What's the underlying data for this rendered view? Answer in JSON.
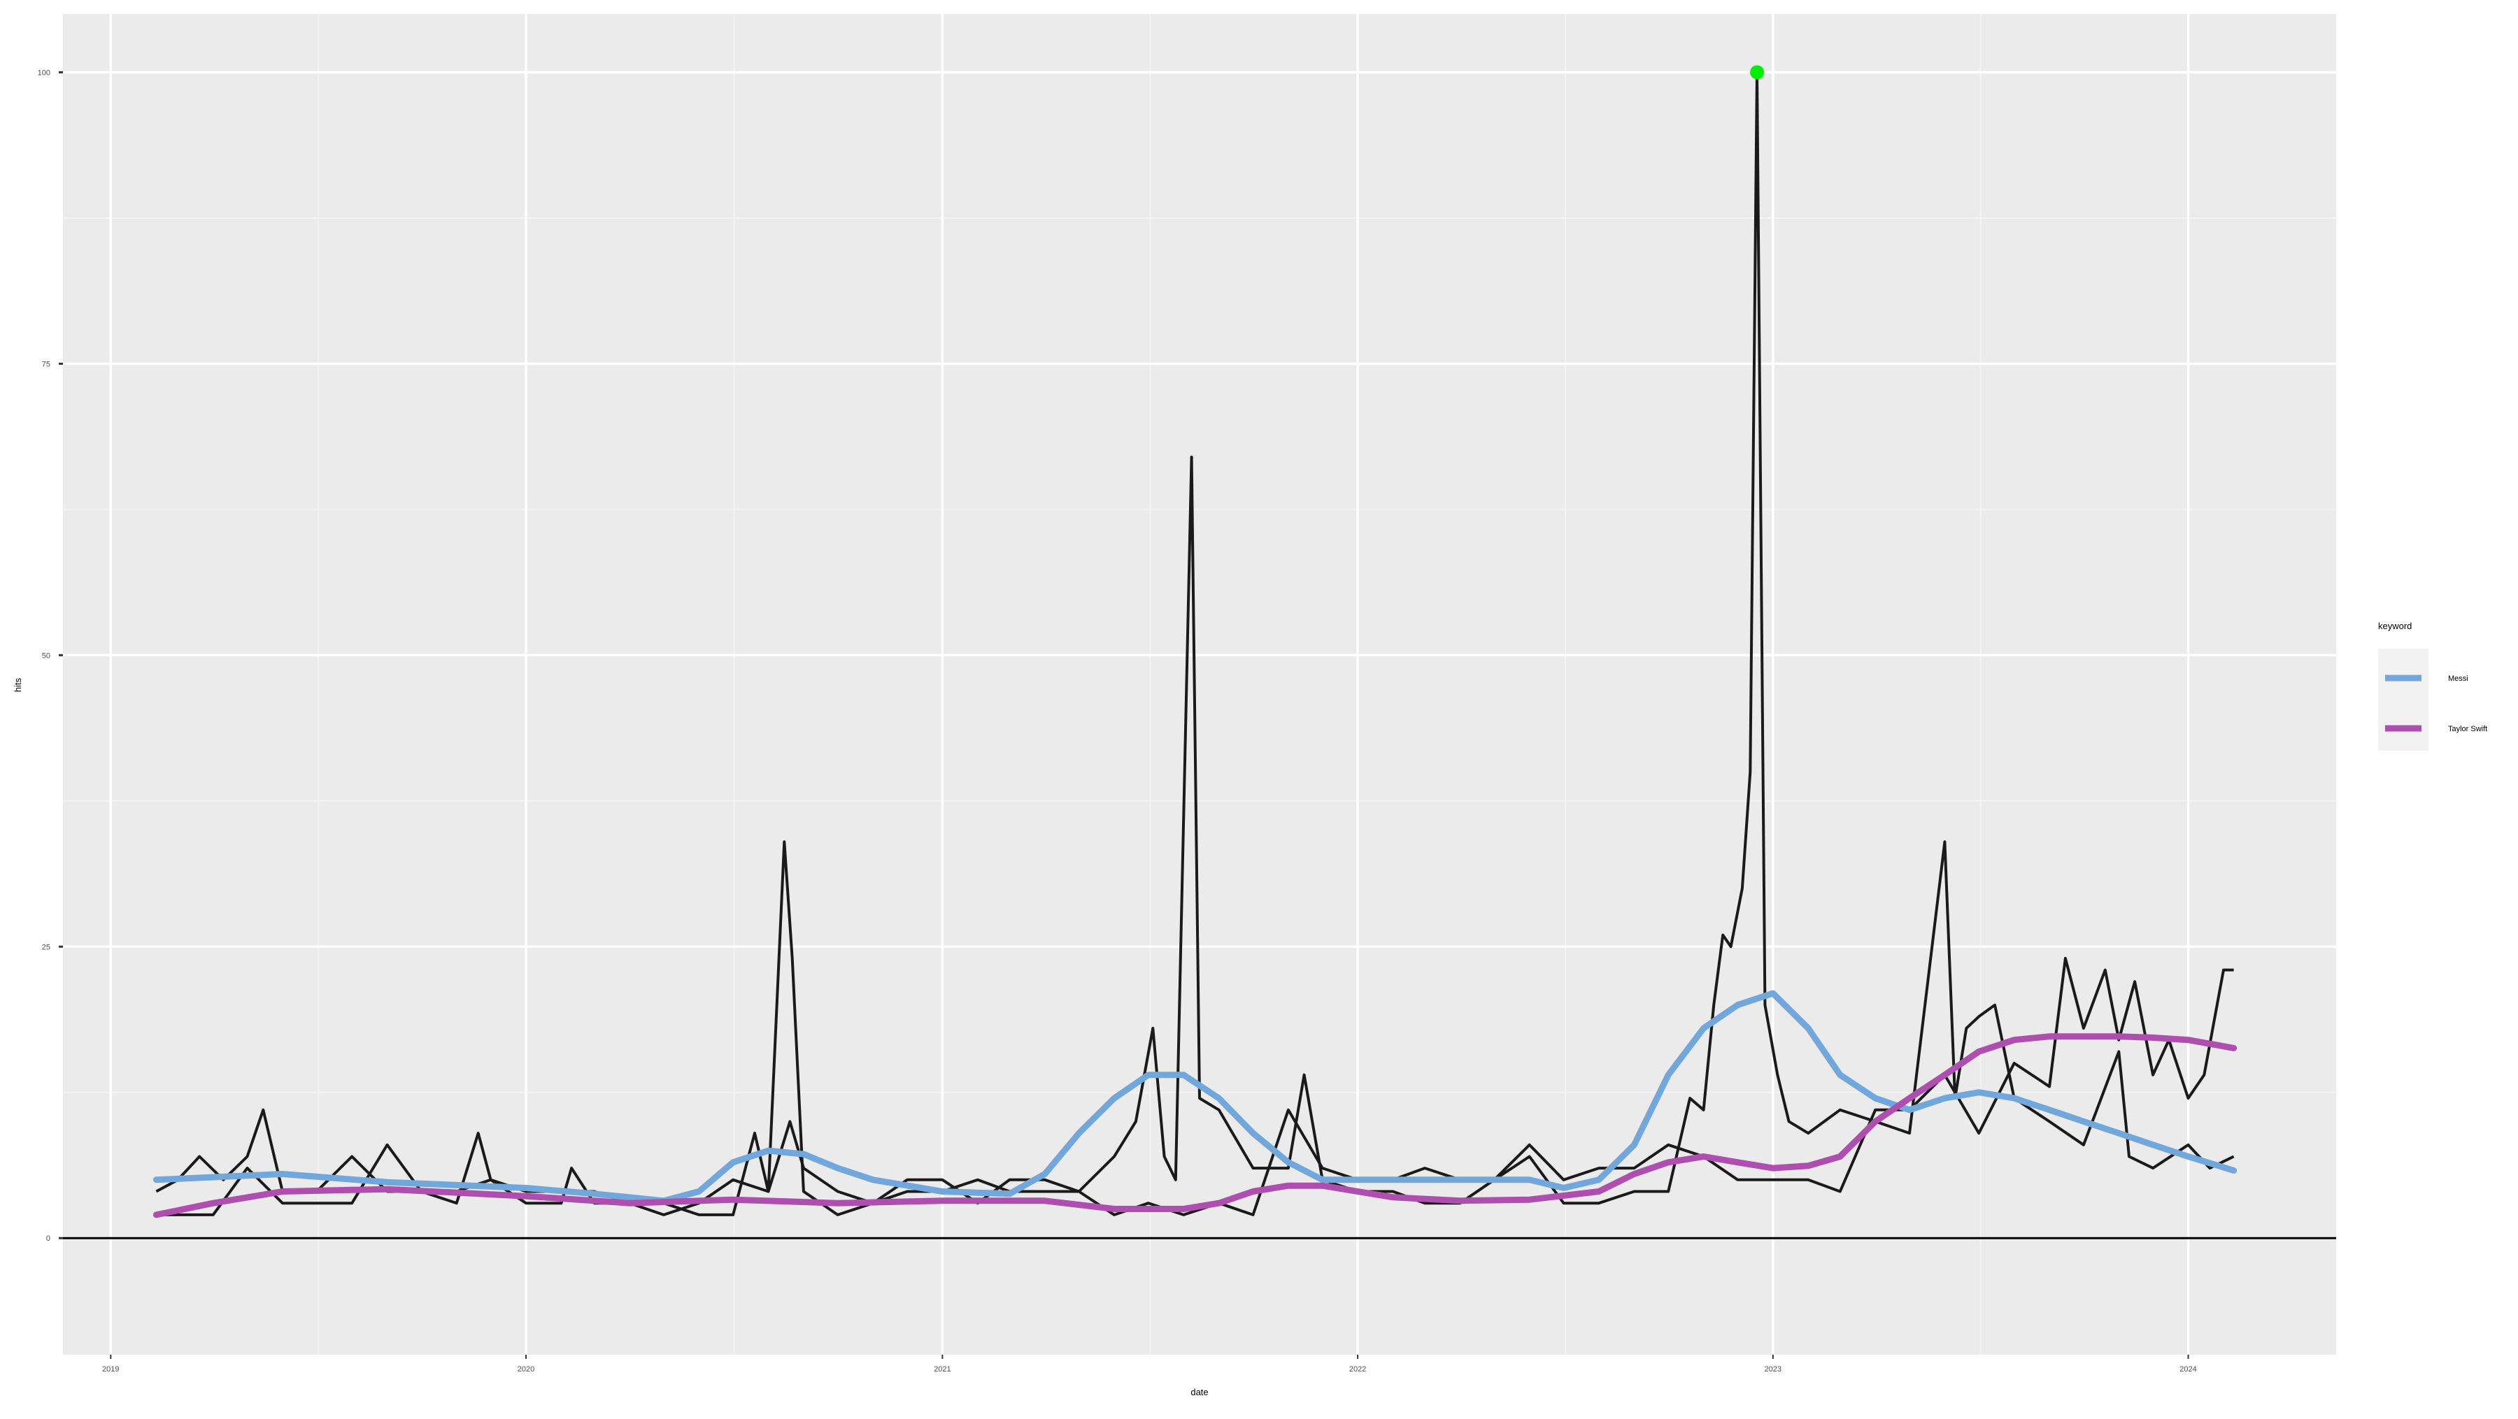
{
  "chart_data": {
    "type": "line",
    "title": "",
    "xlabel": "date",
    "ylabel": "hits",
    "ylim": [
      -10,
      105
    ],
    "xlim": [
      "2018-11-20",
      "2024-05-10"
    ],
    "grid": true,
    "legend": {
      "title": "keyword",
      "position": "right"
    },
    "x_ticks": [
      "2019-01-01",
      "2020-01-01",
      "2021-01-01",
      "2022-01-01",
      "2023-01-01",
      "2024-01-01"
    ],
    "x_tick_labels": [
      "2019",
      "2020",
      "2021",
      "2022",
      "2023",
      "2024"
    ],
    "y_ticks": [
      0,
      25,
      50,
      75,
      100
    ],
    "y_tick_labels": [
      "0",
      "25",
      "50",
      "75",
      "100"
    ],
    "hline": 0,
    "raw_series": [
      {
        "name": "Messi",
        "color": "#1a1a1a",
        "points": [
          [
            "2019-02-10",
            4
          ],
          [
            "2019-03-01",
            5
          ],
          [
            "2019-03-20",
            7
          ],
          [
            "2019-04-10",
            5
          ],
          [
            "2019-05-01",
            7
          ],
          [
            "2019-05-15",
            11
          ],
          [
            "2019-06-01",
            4
          ],
          [
            "2019-07-01",
            4
          ],
          [
            "2019-08-01",
            7
          ],
          [
            "2019-09-01",
            4
          ],
          [
            "2019-10-01",
            4
          ],
          [
            "2019-11-01",
            4
          ],
          [
            "2019-12-01",
            5
          ],
          [
            "2020-01-01",
            4
          ],
          [
            "2020-02-01",
            4
          ],
          [
            "2020-03-01",
            4
          ],
          [
            "2020-04-01",
            3
          ],
          [
            "2020-05-01",
            3
          ],
          [
            "2020-06-01",
            2
          ],
          [
            "2020-07-01",
            2
          ],
          [
            "2020-07-20",
            9
          ],
          [
            "2020-08-01",
            4
          ],
          [
            "2020-08-15",
            34
          ],
          [
            "2020-08-22",
            24
          ],
          [
            "2020-09-01",
            4
          ],
          [
            "2020-10-01",
            2
          ],
          [
            "2020-11-01",
            3
          ],
          [
            "2020-12-01",
            4
          ],
          [
            "2021-01-01",
            4
          ],
          [
            "2021-02-01",
            5
          ],
          [
            "2021-03-01",
            4
          ],
          [
            "2021-04-01",
            4
          ],
          [
            "2021-05-01",
            4
          ],
          [
            "2021-06-01",
            7
          ],
          [
            "2021-06-20",
            10
          ],
          [
            "2021-07-05",
            18
          ],
          [
            "2021-07-15",
            7
          ],
          [
            "2021-07-25",
            5
          ],
          [
            "2021-08-08",
            67
          ],
          [
            "2021-08-15",
            12
          ],
          [
            "2021-09-01",
            11
          ],
          [
            "2021-10-01",
            6
          ],
          [
            "2021-11-01",
            6
          ],
          [
            "2021-11-15",
            14
          ],
          [
            "2021-12-01",
            5
          ],
          [
            "2022-01-01",
            4
          ],
          [
            "2022-02-01",
            4
          ],
          [
            "2022-03-01",
            3
          ],
          [
            "2022-04-01",
            3
          ],
          [
            "2022-05-01",
            5
          ],
          [
            "2022-06-01",
            7
          ],
          [
            "2022-07-01",
            3
          ],
          [
            "2022-08-01",
            3
          ],
          [
            "2022-09-01",
            4
          ],
          [
            "2022-10-01",
            4
          ],
          [
            "2022-10-20",
            12
          ],
          [
            "2022-11-01",
            11
          ],
          [
            "2022-11-10",
            20
          ],
          [
            "2022-11-18",
            26
          ],
          [
            "2022-11-25",
            25
          ],
          [
            "2022-12-05",
            30
          ],
          [
            "2022-12-12",
            40
          ],
          [
            "2022-12-18",
            100
          ],
          [
            "2022-12-25",
            20
          ],
          [
            "2023-01-05",
            14
          ],
          [
            "2023-01-15",
            10
          ],
          [
            "2023-02-01",
            9
          ],
          [
            "2023-03-01",
            11
          ],
          [
            "2023-04-01",
            10
          ],
          [
            "2023-05-01",
            9
          ],
          [
            "2023-06-01",
            34
          ],
          [
            "2023-06-10",
            12
          ],
          [
            "2023-06-20",
            18
          ],
          [
            "2023-07-01",
            19
          ],
          [
            "2023-07-15",
            20
          ],
          [
            "2023-08-01",
            12
          ],
          [
            "2023-09-01",
            10
          ],
          [
            "2023-10-01",
            8
          ],
          [
            "2023-11-01",
            16
          ],
          [
            "2023-11-10",
            7
          ],
          [
            "2023-12-01",
            6
          ],
          [
            "2024-01-01",
            8
          ],
          [
            "2024-01-20",
            6
          ],
          [
            "2024-02-10",
            7
          ]
        ]
      },
      {
        "name": "Taylor Swift",
        "color": "#1a1a1a",
        "points": [
          [
            "2019-02-10",
            2
          ],
          [
            "2019-03-01",
            2
          ],
          [
            "2019-04-01",
            2
          ],
          [
            "2019-05-01",
            6
          ],
          [
            "2019-06-01",
            3
          ],
          [
            "2019-07-01",
            3
          ],
          [
            "2019-08-01",
            3
          ],
          [
            "2019-09-01",
            8
          ],
          [
            "2019-10-01",
            4
          ],
          [
            "2019-11-01",
            3
          ],
          [
            "2019-11-20",
            9
          ],
          [
            "2019-12-01",
            5
          ],
          [
            "2020-01-01",
            3
          ],
          [
            "2020-02-01",
            3
          ],
          [
            "2020-02-10",
            6
          ],
          [
            "2020-03-01",
            3
          ],
          [
            "2020-04-01",
            3
          ],
          [
            "2020-05-01",
            2
          ],
          [
            "2020-06-01",
            3
          ],
          [
            "2020-07-01",
            5
          ],
          [
            "2020-08-01",
            4
          ],
          [
            "2020-08-20",
            10
          ],
          [
            "2020-09-01",
            6
          ],
          [
            "2020-10-01",
            4
          ],
          [
            "2020-11-01",
            3
          ],
          [
            "2020-12-01",
            5
          ],
          [
            "2021-01-01",
            5
          ],
          [
            "2021-02-01",
            3
          ],
          [
            "2021-03-01",
            5
          ],
          [
            "2021-04-01",
            5
          ],
          [
            "2021-05-01",
            4
          ],
          [
            "2021-06-01",
            2
          ],
          [
            "2021-07-01",
            3
          ],
          [
            "2021-08-01",
            2
          ],
          [
            "2021-09-01",
            3
          ],
          [
            "2021-10-01",
            2
          ],
          [
            "2021-11-01",
            11
          ],
          [
            "2021-12-01",
            6
          ],
          [
            "2022-01-01",
            5
          ],
          [
            "2022-02-01",
            5
          ],
          [
            "2022-03-01",
            6
          ],
          [
            "2022-04-01",
            5
          ],
          [
            "2022-05-01",
            5
          ],
          [
            "2022-06-01",
            8
          ],
          [
            "2022-07-01",
            5
          ],
          [
            "2022-08-01",
            6
          ],
          [
            "2022-09-01",
            6
          ],
          [
            "2022-10-01",
            8
          ],
          [
            "2022-11-01",
            7
          ],
          [
            "2022-12-01",
            5
          ],
          [
            "2023-01-01",
            5
          ],
          [
            "2023-02-01",
            5
          ],
          [
            "2023-03-01",
            4
          ],
          [
            "2023-04-01",
            11
          ],
          [
            "2023-05-01",
            11
          ],
          [
            "2023-06-01",
            14
          ],
          [
            "2023-07-01",
            9
          ],
          [
            "2023-08-01",
            15
          ],
          [
            "2023-09-01",
            13
          ],
          [
            "2023-09-15",
            24
          ],
          [
            "2023-10-01",
            18
          ],
          [
            "2023-10-20",
            23
          ],
          [
            "2023-11-01",
            17
          ],
          [
            "2023-11-15",
            22
          ],
          [
            "2023-12-01",
            14
          ],
          [
            "2023-12-15",
            17
          ],
          [
            "2024-01-01",
            12
          ],
          [
            "2024-01-15",
            14
          ],
          [
            "2024-02-01",
            23
          ],
          [
            "2024-02-10",
            23
          ]
        ]
      }
    ],
    "series": [
      {
        "name": "Messi",
        "color": "#72a7dc",
        "points": [
          [
            "2019-02-10",
            5
          ],
          [
            "2019-06-01",
            5.5
          ],
          [
            "2019-09-01",
            4.8
          ],
          [
            "2020-01-01",
            4.3
          ],
          [
            "2020-03-01",
            3.8
          ],
          [
            "2020-05-01",
            3.2
          ],
          [
            "2020-06-01",
            4
          ],
          [
            "2020-07-01",
            6.5
          ],
          [
            "2020-08-01",
            7.5
          ],
          [
            "2020-09-01",
            7.2
          ],
          [
            "2020-10-01",
            6
          ],
          [
            "2020-11-01",
            5
          ],
          [
            "2021-01-01",
            4
          ],
          [
            "2021-03-01",
            3.8
          ],
          [
            "2021-04-01",
            5.5
          ],
          [
            "2021-05-01",
            9
          ],
          [
            "2021-06-01",
            12
          ],
          [
            "2021-07-01",
            14
          ],
          [
            "2021-08-01",
            14
          ],
          [
            "2021-09-01",
            12
          ],
          [
            "2021-10-01",
            9
          ],
          [
            "2021-11-01",
            6.5
          ],
          [
            "2021-12-01",
            5
          ],
          [
            "2022-01-01",
            5
          ],
          [
            "2022-03-01",
            5
          ],
          [
            "2022-05-01",
            5
          ],
          [
            "2022-06-01",
            5
          ],
          [
            "2022-07-01",
            4.3
          ],
          [
            "2022-08-01",
            5
          ],
          [
            "2022-09-01",
            8
          ],
          [
            "2022-10-01",
            14
          ],
          [
            "2022-11-01",
            18
          ],
          [
            "2022-12-01",
            20
          ],
          [
            "2023-01-01",
            21
          ],
          [
            "2023-02-01",
            18
          ],
          [
            "2023-03-01",
            14
          ],
          [
            "2023-04-01",
            12
          ],
          [
            "2023-05-01",
            11
          ],
          [
            "2023-06-01",
            12
          ],
          [
            "2023-07-01",
            12.5
          ],
          [
            "2023-08-01",
            12
          ],
          [
            "2023-09-01",
            11
          ],
          [
            "2023-10-01",
            10
          ],
          [
            "2023-11-01",
            9
          ],
          [
            "2023-12-01",
            8
          ],
          [
            "2024-01-01",
            7
          ],
          [
            "2024-02-10",
            5.8
          ]
        ]
      },
      {
        "name": "Taylor Swift",
        "color": "#ae4fb0",
        "points": [
          [
            "2019-02-10",
            2
          ],
          [
            "2019-04-01",
            3
          ],
          [
            "2019-06-01",
            4
          ],
          [
            "2019-09-01",
            4.2
          ],
          [
            "2020-01-01",
            3.6
          ],
          [
            "2020-04-01",
            3
          ],
          [
            "2020-07-01",
            3.3
          ],
          [
            "2020-10-01",
            3
          ],
          [
            "2021-01-01",
            3.2
          ],
          [
            "2021-04-01",
            3.2
          ],
          [
            "2021-06-01",
            2.5
          ],
          [
            "2021-08-01",
            2.5
          ],
          [
            "2021-09-01",
            3
          ],
          [
            "2021-10-01",
            4
          ],
          [
            "2021-11-01",
            4.5
          ],
          [
            "2021-12-01",
            4.5
          ],
          [
            "2022-02-01",
            3.5
          ],
          [
            "2022-04-01",
            3.2
          ],
          [
            "2022-06-01",
            3.3
          ],
          [
            "2022-08-01",
            4
          ],
          [
            "2022-09-01",
            5.5
          ],
          [
            "2022-10-01",
            6.5
          ],
          [
            "2022-11-01",
            7
          ],
          [
            "2022-12-01",
            6.5
          ],
          [
            "2023-01-01",
            6
          ],
          [
            "2023-02-01",
            6.2
          ],
          [
            "2023-03-01",
            7
          ],
          [
            "2023-04-01",
            10
          ],
          [
            "2023-05-01",
            12
          ],
          [
            "2023-06-01",
            14
          ],
          [
            "2023-07-01",
            16
          ],
          [
            "2023-08-01",
            17
          ],
          [
            "2023-09-01",
            17.3
          ],
          [
            "2023-10-01",
            17.3
          ],
          [
            "2023-11-01",
            17.3
          ],
          [
            "2023-12-01",
            17.2
          ],
          [
            "2024-01-01",
            17
          ],
          [
            "2024-02-10",
            16.3
          ]
        ]
      }
    ],
    "highlight_point": {
      "x": "2022-12-18",
      "y": 100,
      "color": "#00ee00"
    },
    "colors": {
      "panel_bg": "#ebebeb",
      "grid_major": "#ffffff",
      "grid_minor": "#f3f3f3",
      "raw_line": "#1a1a1a"
    }
  }
}
